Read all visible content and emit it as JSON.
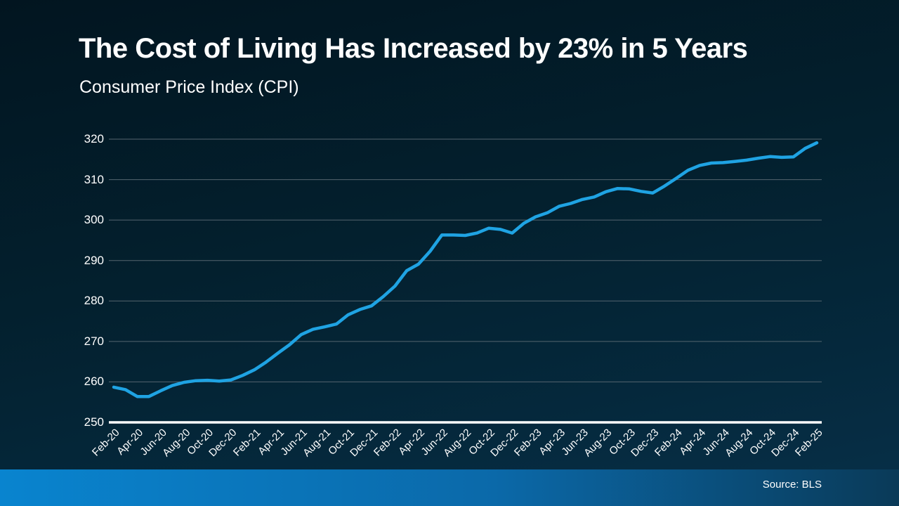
{
  "header": {
    "title": "The Cost of Living Has Increased by 23% in 5 Years",
    "subtitle": "Consumer Price Index (CPI)"
  },
  "footer": {
    "source": "Source: BLS"
  },
  "colors": {
    "line": "#1fa3e3",
    "gridline": "#55656f",
    "axis": "#ffffff",
    "text": "#ffffff",
    "background_top": "#021520",
    "background_bottom": "#073049",
    "footer_left": "#0984cf",
    "footer_mid": "#0b69a9",
    "footer_right": "#0a3a58"
  },
  "chart_data": {
    "type": "line",
    "title": "The Cost of Living Has Increased by 23% in 5 Years",
    "subtitle": "Consumer Price Index (CPI)",
    "source": "Source: BLS",
    "xlabel": "",
    "ylabel": "",
    "ylim": [
      250,
      320
    ],
    "yticks": [
      250,
      260,
      270,
      280,
      290,
      300,
      310,
      320
    ],
    "grid": true,
    "legend": false,
    "x_tick_every": 2,
    "x": [
      "Feb-20",
      "Mar-20",
      "Apr-20",
      "May-20",
      "Jun-20",
      "Jul-20",
      "Aug-20",
      "Sep-20",
      "Oct-20",
      "Nov-20",
      "Dec-20",
      "Jan-21",
      "Feb-21",
      "Mar-21",
      "Apr-21",
      "May-21",
      "Jun-21",
      "Jul-21",
      "Aug-21",
      "Sep-21",
      "Oct-21",
      "Nov-21",
      "Dec-21",
      "Jan-22",
      "Feb-22",
      "Mar-22",
      "Apr-22",
      "May-22",
      "Jun-22",
      "Jul-22",
      "Aug-22",
      "Sep-22",
      "Oct-22",
      "Nov-22",
      "Dec-22",
      "Jan-23",
      "Feb-23",
      "Mar-23",
      "Apr-23",
      "May-23",
      "Jun-23",
      "Jul-23",
      "Aug-23",
      "Sep-23",
      "Oct-23",
      "Nov-23",
      "Dec-23",
      "Jan-24",
      "Feb-24",
      "Mar-24",
      "Apr-24",
      "May-24",
      "Jun-24",
      "Jul-24",
      "Aug-24",
      "Sep-24",
      "Oct-24",
      "Nov-24",
      "Dec-24",
      "Jan-25",
      "Feb-25"
    ],
    "series": [
      {
        "name": "CPI",
        "values": [
          258.7,
          258.1,
          256.4,
          256.4,
          257.8,
          259.1,
          259.9,
          260.3,
          260.4,
          260.2,
          260.5,
          261.6,
          263.0,
          264.9,
          267.1,
          269.2,
          271.7,
          273.0,
          273.6,
          274.3,
          276.6,
          277.9,
          278.8,
          281.1,
          283.7,
          287.5,
          289.1,
          292.3,
          296.3,
          296.3,
          296.2,
          296.8,
          298.0,
          297.7,
          296.8,
          299.2,
          300.8,
          301.8,
          303.4,
          304.1,
          305.1,
          305.7,
          307.0,
          307.8,
          307.7,
          307.1,
          306.7,
          308.4,
          310.3,
          312.3,
          313.5,
          314.1,
          314.2,
          314.5,
          314.8,
          315.3,
          315.7,
          315.5,
          315.6,
          317.7,
          319.1
        ]
      }
    ]
  }
}
